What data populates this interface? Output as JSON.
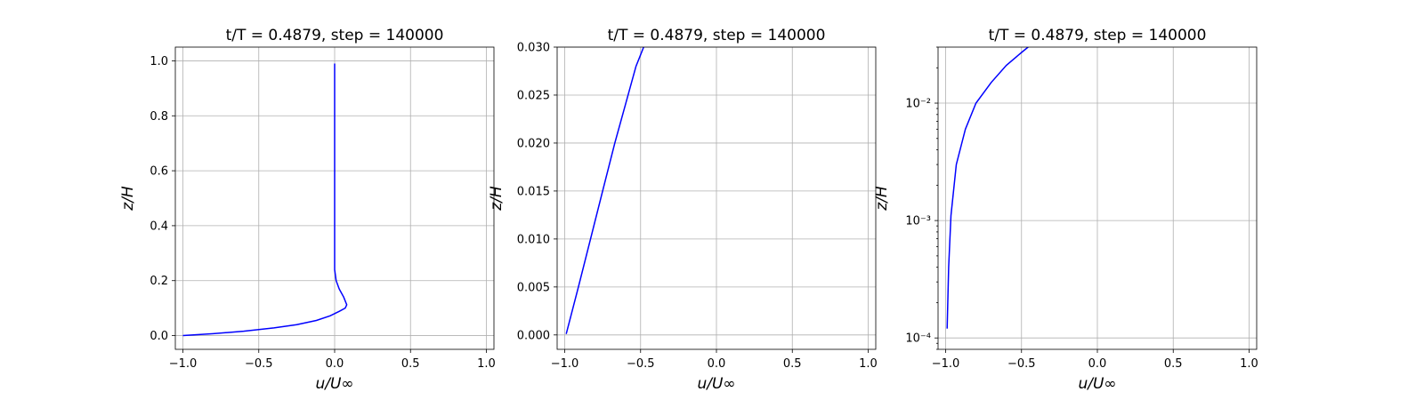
{
  "chart_data": [
    {
      "type": "line",
      "title": "t/T = 0.4879, step = 140000",
      "xlabel": "u/U∞",
      "ylabel": "z/H",
      "xlim": [
        -1.05,
        1.05
      ],
      "ylim": [
        -0.05,
        1.05
      ],
      "xscale": "linear",
      "yscale": "linear",
      "xticks": [
        -1.0,
        -0.5,
        0.0,
        0.5,
        1.0
      ],
      "xticklabels": [
        "−1.0",
        "−0.5",
        "0.0",
        "0.5",
        "1.0"
      ],
      "yticks": [
        0.0,
        0.2,
        0.4,
        0.6,
        0.8,
        1.0
      ],
      "yticklabels": [
        "0.0",
        "0.2",
        "0.4",
        "0.6",
        "0.8",
        "1.0"
      ],
      "grid": true,
      "series": [
        {
          "color": "#0000ff",
          "x": [
            -1.0,
            -0.8,
            -0.6,
            -0.4,
            -0.25,
            -0.12,
            -0.03,
            0.03,
            0.07,
            0.08,
            0.06,
            0.03,
            0.01,
            0.0,
            0.0,
            0.0,
            0.0,
            0.0
          ],
          "y": [
            0.0,
            0.007,
            0.016,
            0.028,
            0.04,
            0.055,
            0.072,
            0.088,
            0.1,
            0.112,
            0.14,
            0.17,
            0.2,
            0.24,
            0.3,
            0.4,
            0.6,
            0.99
          ]
        }
      ]
    },
    {
      "type": "line",
      "title": "t/T = 0.4879, step = 140000",
      "xlabel": "u/U∞",
      "ylabel": "z/H",
      "xlim": [
        -1.05,
        1.05
      ],
      "ylim": [
        -0.0015,
        0.03
      ],
      "xscale": "linear",
      "yscale": "linear",
      "xticks": [
        -1.0,
        -0.5,
        0.0,
        0.5,
        1.0
      ],
      "xticklabels": [
        "−1.0",
        "−0.5",
        "0.0",
        "0.5",
        "1.0"
      ],
      "yticks": [
        0.0,
        0.005,
        0.01,
        0.015,
        0.02,
        0.025,
        0.03
      ],
      "yticklabels": [
        "0.000",
        "0.005",
        "0.010",
        "0.015",
        "0.020",
        "0.025",
        "0.030"
      ],
      "grid": true,
      "series": [
        {
          "color": "#0000ff",
          "x": [
            -0.99,
            -0.91,
            -0.83,
            -0.75,
            -0.67,
            -0.6,
            -0.53,
            -0.48,
            -0.43
          ],
          "y": [
            0.0001,
            0.005,
            0.01,
            0.015,
            0.02,
            0.024,
            0.028,
            0.03,
            0.032
          ]
        }
      ]
    },
    {
      "type": "line",
      "title": "t/T = 0.4879, step = 140000",
      "xlabel": "u/U∞",
      "ylabel": "z/H",
      "xlim": [
        -1.05,
        1.05
      ],
      "ylim": [
        8e-05,
        0.03
      ],
      "xscale": "linear",
      "yscale": "log",
      "xticks": [
        -1.0,
        -0.5,
        0.0,
        0.5,
        1.0
      ],
      "xticklabels": [
        "−1.0",
        "−0.5",
        "0.0",
        "0.5",
        "1.0"
      ],
      "yticks": [
        0.0001,
        0.001,
        0.01
      ],
      "yticklabels": [
        "10⁻⁴",
        "10⁻³",
        "10⁻²"
      ],
      "grid": true,
      "series": [
        {
          "color": "#0000ff",
          "x": [
            -0.99,
            -0.98,
            -0.965,
            -0.93,
            -0.87,
            -0.8,
            -0.7,
            -0.6,
            -0.5,
            -0.43
          ],
          "y": [
            0.00012,
            0.0004,
            0.0011,
            0.003,
            0.006,
            0.01,
            0.015,
            0.021,
            0.027,
            0.032
          ]
        }
      ]
    }
  ]
}
